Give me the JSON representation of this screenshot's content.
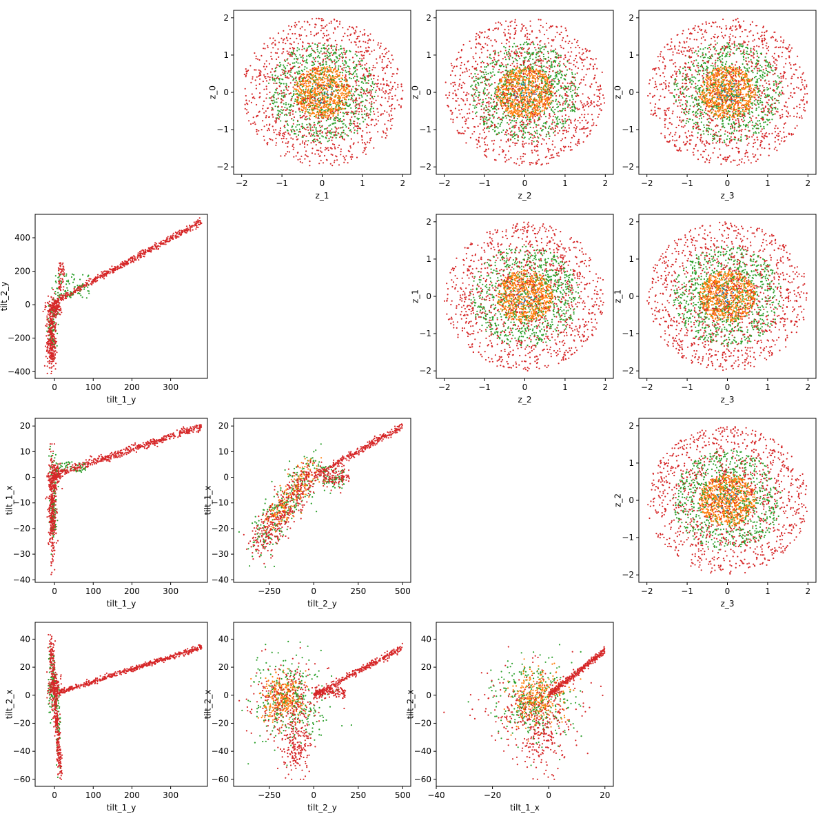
{
  "chart_data": [
    {
      "type": "scatter",
      "xlabel": "z_1",
      "ylabel": "z_0",
      "xlim": [
        -2.2,
        2.2
      ],
      "ylim": [
        -2.2,
        2.2
      ],
      "xticks": [
        -2,
        -1,
        0,
        1,
        2
      ],
      "yticks": [
        -2,
        -1,
        0,
        1,
        2
      ],
      "distribution": "disk",
      "series_extent": {
        "red": 2.0,
        "green": 1.35,
        "orange": 0.7
      }
    },
    {
      "type": "scatter",
      "xlabel": "z_2",
      "ylabel": "z_0",
      "xlim": [
        -2.2,
        2.2
      ],
      "ylim": [
        -2.2,
        2.2
      ],
      "xticks": [
        -2,
        -1,
        0,
        1,
        2
      ],
      "yticks": [
        -2,
        -1,
        0,
        1,
        2
      ],
      "distribution": "disk",
      "series_extent": {
        "red": 2.0,
        "green": 1.35,
        "orange": 0.7
      }
    },
    {
      "type": "scatter",
      "xlabel": "z_3",
      "ylabel": "z_0",
      "xlim": [
        -2.2,
        2.2
      ],
      "ylim": [
        -2.2,
        2.2
      ],
      "xticks": [
        -2,
        -1,
        0,
        1,
        2
      ],
      "yticks": [
        -2,
        -1,
        0,
        1,
        2
      ],
      "distribution": "disk",
      "series_extent": {
        "red": 2.0,
        "green": 1.35,
        "orange": 0.7
      }
    },
    {
      "type": "scatter",
      "xlabel": "tilt_1_y",
      "ylabel": "tilt_2_y",
      "xlim": [
        -50,
        395
      ],
      "ylim": [
        -440,
        540
      ],
      "xticks": [
        0,
        100,
        200,
        300
      ],
      "yticks": [
        -400,
        -200,
        0,
        200,
        400
      ],
      "distribution": "tilt_y_vs_y"
    },
    {
      "type": "scatter",
      "xlabel": "z_2",
      "ylabel": "z_1",
      "xlim": [
        -2.2,
        2.2
      ],
      "ylim": [
        -2.2,
        2.2
      ],
      "xticks": [
        -2,
        -1,
        0,
        1,
        2
      ],
      "yticks": [
        -2,
        -1,
        0,
        1,
        2
      ],
      "distribution": "disk",
      "series_extent": {
        "red": 2.0,
        "green": 1.35,
        "orange": 0.7
      }
    },
    {
      "type": "scatter",
      "xlabel": "z_3",
      "ylabel": "z_1",
      "xlim": [
        -2.2,
        2.2
      ],
      "ylim": [
        -2.2,
        2.2
      ],
      "xticks": [
        -2,
        -1,
        0,
        1,
        2
      ],
      "yticks": [
        -2,
        -1,
        0,
        1,
        2
      ],
      "distribution": "disk",
      "series_extent": {
        "red": 2.0,
        "green": 1.35,
        "orange": 0.7
      }
    },
    {
      "type": "scatter",
      "xlabel": "tilt_1_y",
      "ylabel": "tilt_1_x",
      "xlim": [
        -50,
        395
      ],
      "ylim": [
        -41,
        23
      ],
      "xticks": [
        0,
        100,
        200,
        300
      ],
      "yticks": [
        -40,
        -30,
        -20,
        -10,
        0,
        10,
        20
      ],
      "distribution": "tilt_y_vs_x1"
    },
    {
      "type": "scatter",
      "xlabel": "tilt_2_y",
      "ylabel": "tilt_1_x",
      "xlim": [
        -450,
        545
      ],
      "ylim": [
        -41,
        23
      ],
      "xticks": [
        -250,
        0,
        250,
        500
      ],
      "yticks": [
        -40,
        -30,
        -20,
        -10,
        0,
        10,
        20
      ],
      "distribution": "tilt_2y_vs_x1"
    },
    {
      "type": "scatter",
      "xlabel": "z_3",
      "ylabel": "z_2",
      "xlim": [
        -2.2,
        2.2
      ],
      "ylim": [
        -2.2,
        2.2
      ],
      "xticks": [
        -2,
        -1,
        0,
        1,
        2
      ],
      "yticks": [
        -2,
        -1,
        0,
        1,
        2
      ],
      "distribution": "disk",
      "series_extent": {
        "red": 2.0,
        "green": 1.35,
        "orange": 0.7
      }
    },
    {
      "type": "scatter",
      "xlabel": "tilt_1_y",
      "ylabel": "tilt_2_x",
      "xlim": [
        -50,
        395
      ],
      "ylim": [
        -65,
        52
      ],
      "xticks": [
        0,
        100,
        200,
        300
      ],
      "yticks": [
        -60,
        -40,
        -20,
        0,
        20,
        40
      ],
      "distribution": "tilt_y_vs_x2"
    },
    {
      "type": "scatter",
      "xlabel": "tilt_2_y",
      "ylabel": "tilt_2_x",
      "xlim": [
        -450,
        545
      ],
      "ylim": [
        -65,
        52
      ],
      "xticks": [
        -250,
        0,
        250,
        500
      ],
      "yticks": [
        -60,
        -40,
        -20,
        0,
        20,
        40
      ],
      "distribution": "tilt_2y_vs_x2"
    },
    {
      "type": "scatter",
      "xlabel": "tilt_1_x",
      "ylabel": "tilt_2_x",
      "xlim": [
        -40,
        23
      ],
      "ylim": [
        -65,
        52
      ],
      "xticks": [
        -40,
        -20,
        0,
        20
      ],
      "yticks": [
        -60,
        -40,
        -20,
        0,
        20,
        40
      ],
      "distribution": "tilt_x1_vs_x2"
    }
  ],
  "colors": {
    "red": "#d62728",
    "green": "#2ca02c",
    "orange": "#ff7f0e",
    "blue": "#1f77b4"
  }
}
